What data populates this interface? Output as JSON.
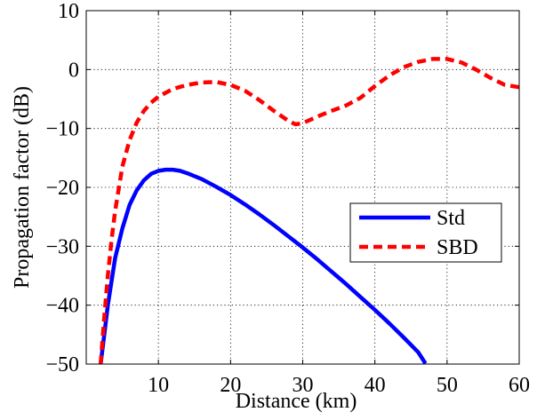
{
  "chart_data": {
    "type": "line",
    "title": "",
    "xlabel": "Distance (km)",
    "ylabel": "Propagation factor (dB)",
    "xlim": [
      0,
      60
    ],
    "ylim": [
      -50,
      10
    ],
    "xticks": [
      10,
      20,
      30,
      40,
      50,
      60
    ],
    "yticks": [
      10,
      0,
      -10,
      -20,
      -30,
      -40,
      -50
    ],
    "xtick_labels": [
      "10",
      "20",
      "30",
      "40",
      "50",
      "60"
    ],
    "ytick_labels": [
      "10",
      "0",
      "−10",
      "−20",
      "−30",
      "−40",
      "−50"
    ],
    "grid": true,
    "legend_position": "center-right",
    "series": [
      {
        "name": "Std",
        "color": "#0000ff",
        "style": "solid",
        "x": [
          2.0,
          2.5,
          3.0,
          3.5,
          4.0,
          5.0,
          6.0,
          7.0,
          8.0,
          9.0,
          10.0,
          11.0,
          12.0,
          13.0,
          14.0,
          16.0,
          18.0,
          20.0,
          22.0,
          24.0,
          26.0,
          28.0,
          30.0,
          32.0,
          34.0,
          36.0,
          38.0,
          40.0,
          42.0,
          44.0,
          46.0,
          47.0
        ],
        "values": [
          -50.0,
          -45.0,
          -40.0,
          -36.0,
          -32.0,
          -27.0,
          -23.0,
          -20.5,
          -18.8,
          -17.7,
          -17.2,
          -17.0,
          -17.0,
          -17.2,
          -17.6,
          -18.6,
          -19.9,
          -21.3,
          -22.9,
          -24.6,
          -26.4,
          -28.3,
          -30.2,
          -32.2,
          -34.3,
          -36.4,
          -38.6,
          -40.8,
          -43.1,
          -45.5,
          -48.0,
          -49.9
        ]
      },
      {
        "name": "SBD",
        "color": "#ff0000",
        "style": "dashed",
        "x": [
          2.0,
          2.5,
          3.0,
          3.5,
          4.0,
          5.0,
          6.0,
          7.0,
          8.0,
          9.0,
          10.0,
          12.0,
          14.0,
          16.0,
          18.0,
          20.0,
          22.0,
          24.0,
          26.0,
          28.0,
          29.0,
          30.0,
          32.0,
          34.0,
          36.0,
          38.0,
          40.0,
          42.0,
          44.0,
          46.0,
          48.0,
          50.0,
          52.0,
          54.0,
          56.0,
          58.0,
          60.0
        ],
        "values": [
          -50.0,
          -42.0,
          -35.0,
          -29.0,
          -24.0,
          -16.5,
          -12.0,
          -9.0,
          -7.0,
          -5.6,
          -4.6,
          -3.3,
          -2.6,
          -2.2,
          -2.1,
          -2.6,
          -3.6,
          -5.2,
          -7.0,
          -8.7,
          -9.3,
          -9.1,
          -8.0,
          -7.0,
          -6.1,
          -4.8,
          -2.8,
          -1.0,
          0.4,
          1.3,
          1.8,
          1.8,
          1.2,
          0.0,
          -1.4,
          -2.6,
          -3.0
        ]
      }
    ]
  }
}
